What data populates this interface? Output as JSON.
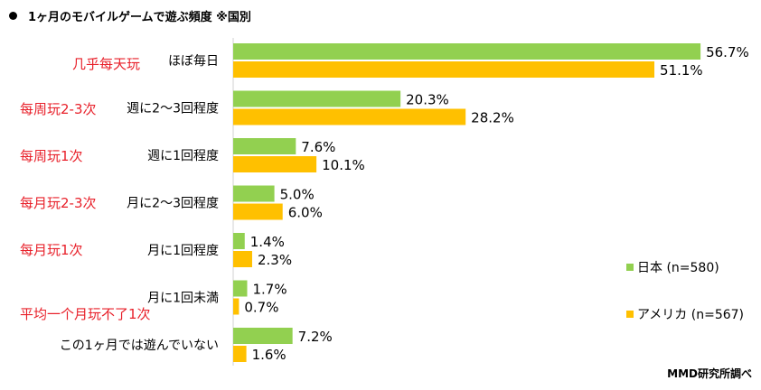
{
  "title": "1ヶ月のモバイルゲームで遊ぶ頻度 ※国別",
  "source": "MMD研究所調べ",
  "colors": {
    "japan": "#92d050",
    "usa": "#ffc000",
    "annotation": "#e8202a"
  },
  "chart_data": {
    "type": "bar",
    "orientation": "horizontal",
    "title": "1ヶ月のモバイルゲームで遊ぶ頻度 ※国別",
    "categories": [
      "ほぼ毎日",
      "週に2〜3回程度",
      "週に1回程度",
      "月に2〜3回程度",
      "月に1回程度",
      "月に1回未満",
      "この1ヶ月では遊んでいない"
    ],
    "annotations": [
      "几乎每天玩",
      "每周玩2-3次",
      "每周玩1次",
      "每月玩2-3次",
      "每月玩1次",
      "平均一个月玩不了1次",
      ""
    ],
    "series": [
      {
        "name": "日本 (n=580)",
        "values": [
          56.7,
          20.3,
          7.6,
          5.0,
          1.4,
          1.7,
          7.2
        ]
      },
      {
        "name": "アメリカ (n=567)",
        "values": [
          51.1,
          28.2,
          10.1,
          6.0,
          2.3,
          0.7,
          1.6
        ]
      }
    ],
    "value_format": "%",
    "xlim": [
      0,
      60
    ],
    "legend": "right",
    "grid": false
  }
}
